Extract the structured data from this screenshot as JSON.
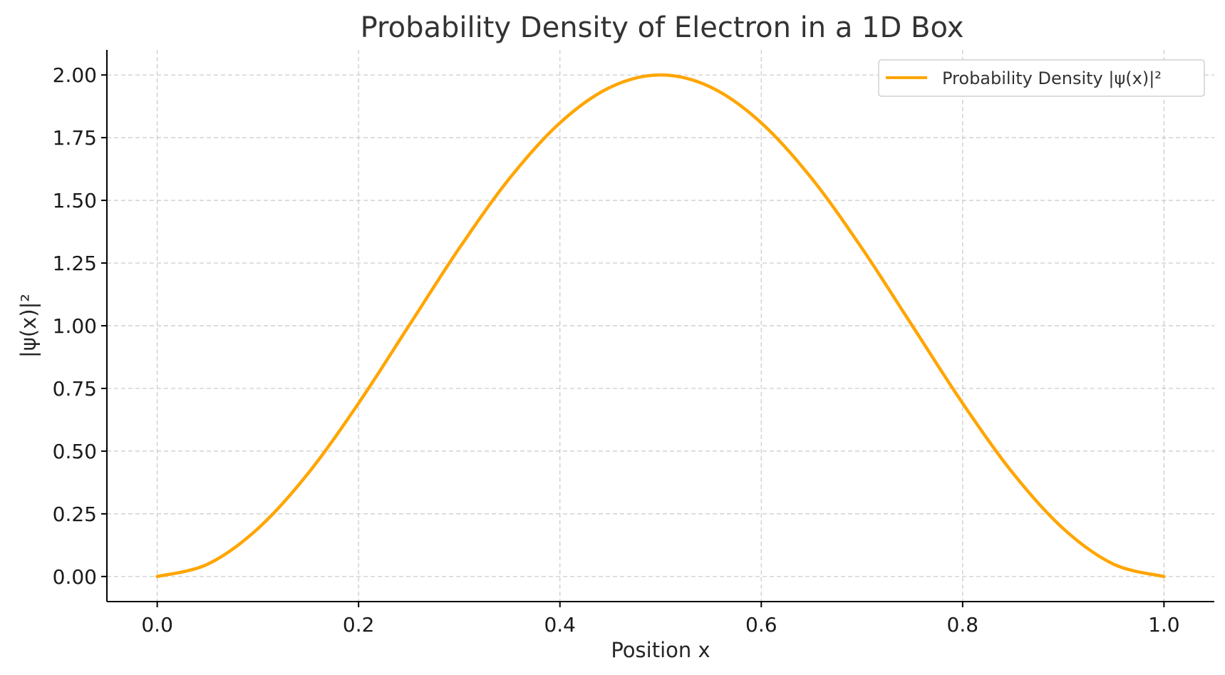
{
  "chart_data": {
    "type": "line",
    "title": "Probability Density of Electron in a 1D Box",
    "xlabel": "Position x",
    "ylabel": "|ψ(x)|²",
    "xlim": [
      -0.05,
      1.05
    ],
    "ylim": [
      -0.1,
      2.1
    ],
    "xticks": [
      0.0,
      0.2,
      0.4,
      0.6,
      0.8,
      1.0
    ],
    "xtick_labels": [
      "0.0",
      "0.2",
      "0.4",
      "0.6",
      "0.8",
      "1.0"
    ],
    "yticks": [
      0.0,
      0.25,
      0.5,
      0.75,
      1.0,
      1.25,
      1.5,
      1.75,
      2.0
    ],
    "ytick_labels": [
      "0.00",
      "0.25",
      "0.50",
      "0.75",
      "1.00",
      "1.25",
      "1.50",
      "1.75",
      "2.00"
    ],
    "grid": true,
    "legend_position": "top-right",
    "series": [
      {
        "name": "Probability Density |ψ(x)|²",
        "color": "#FFA500",
        "x": [
          0.0,
          0.05,
          0.1,
          0.15,
          0.2,
          0.25,
          0.3,
          0.35,
          0.4,
          0.45,
          0.5,
          0.55,
          0.6,
          0.65,
          0.7,
          0.75,
          0.8,
          0.85,
          0.9,
          0.95,
          1.0
        ],
        "y": [
          0.0,
          0.049,
          0.191,
          0.412,
          0.691,
          1.0,
          1.309,
          1.588,
          1.809,
          1.951,
          2.0,
          1.951,
          1.809,
          1.588,
          1.309,
          1.0,
          0.691,
          0.412,
          0.191,
          0.049,
          0.0
        ]
      }
    ]
  }
}
